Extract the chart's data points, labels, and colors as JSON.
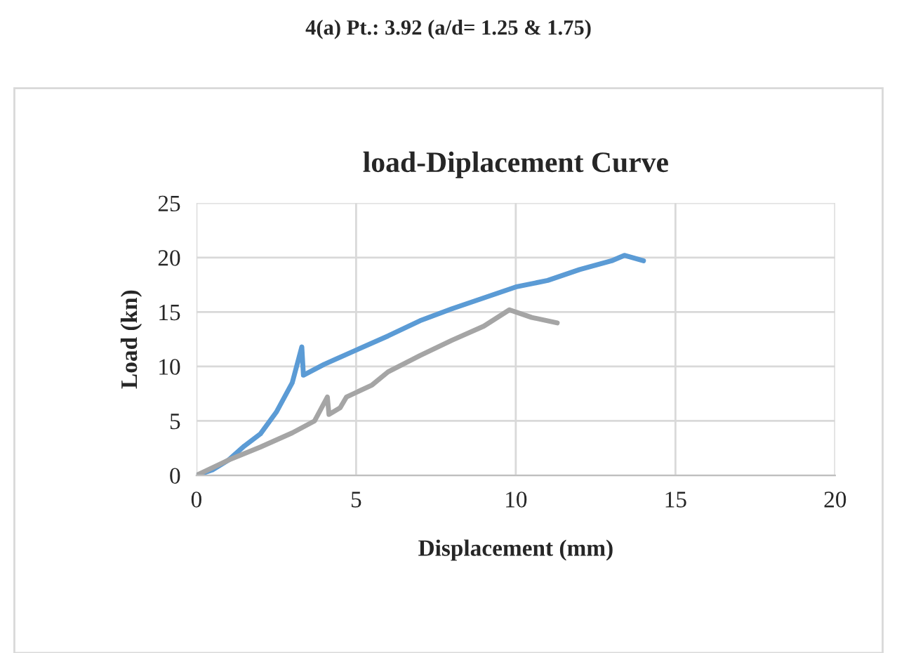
{
  "chart_data": {
    "type": "line",
    "title": "load-Diplacement Curve",
    "subtitle": "4(a) Pt.: 3.92 (a/d= 1.25 & 1.75)",
    "xlabel": "Displacement (mm)",
    "ylabel": "Load (kn)",
    "xlim": [
      0,
      20
    ],
    "xticks": [
      0,
      5,
      10,
      15,
      20
    ],
    "ylim": [
      0,
      25
    ],
    "yticks": [
      0,
      5,
      10,
      15,
      20,
      25
    ],
    "grid": true,
    "legend": false,
    "marker": "none",
    "line_style": "solid",
    "series": [
      {
        "color": "#5b9bd5",
        "x": [
          0,
          0.5,
          1,
          1.5,
          2,
          2.5,
          3,
          3.3,
          3.35,
          4,
          5,
          6,
          7,
          8,
          9,
          10,
          11,
          12,
          13,
          13.4,
          14
        ],
        "values": [
          0,
          0.5,
          1.4,
          2.7,
          3.8,
          5.8,
          8.5,
          11.8,
          9.2,
          10.2,
          11.5,
          12.8,
          14.2,
          15.3,
          16.3,
          17.3,
          17.9,
          18.9,
          19.7,
          20.2,
          19.7
        ]
      },
      {
        "color": "#a5a5a5",
        "x": [
          0,
          1,
          2,
          3,
          3.7,
          4.1,
          4.15,
          4.5,
          4.7,
          5.5,
          6,
          7,
          8,
          9,
          9.8,
          10.5,
          11.3
        ],
        "values": [
          0,
          1.4,
          2.6,
          3.9,
          5,
          7.2,
          5.6,
          6.2,
          7.2,
          8.3,
          9.5,
          11,
          12.4,
          13.7,
          15.2,
          14.5,
          14
        ]
      }
    ]
  }
}
